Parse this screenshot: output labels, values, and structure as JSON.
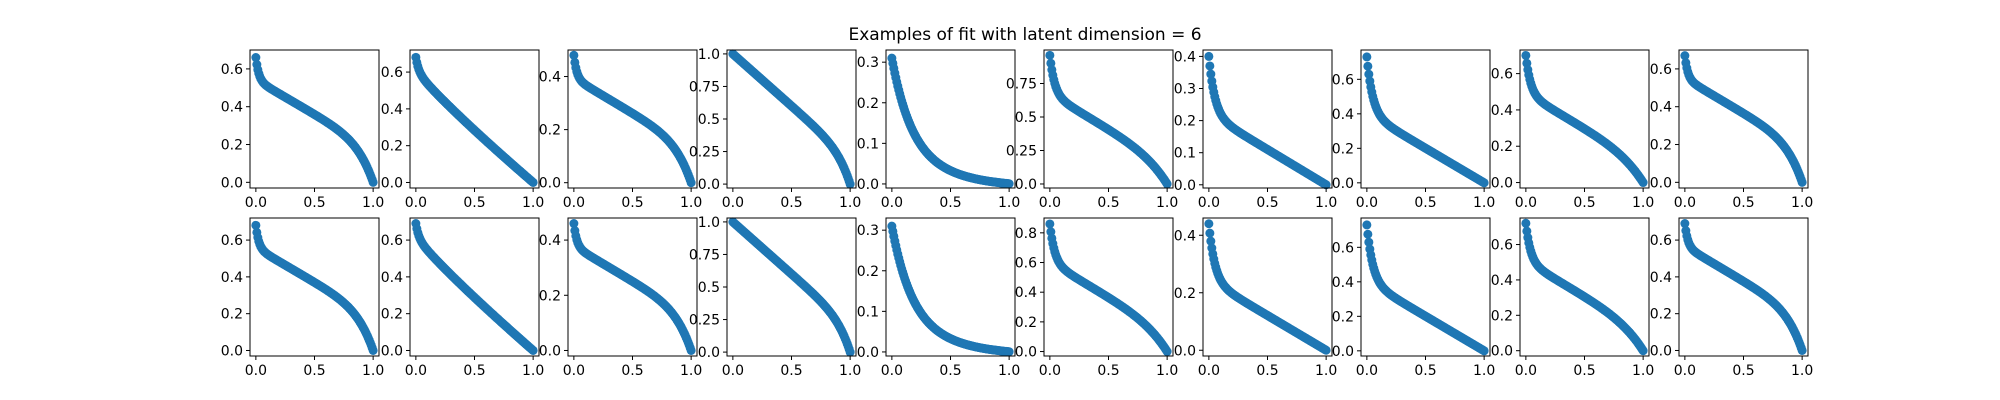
{
  "title": "Examples of fit with latent dimension = 6",
  "chart_data": {
    "type": "scatter",
    "layout": {
      "rows": 2,
      "cols": 10
    },
    "marker_color": "#1f77b4",
    "x_ticks": [
      "0.0",
      "0.5",
      "1.0"
    ],
    "xlim": [
      -0.05,
      1.05
    ],
    "panels": [
      {
        "ytop": 0.66,
        "shape": "convex_mid",
        "yticks": [
          0.0,
          0.2,
          0.4,
          0.6
        ],
        "ylim": [
          -0.03,
          0.7
        ]
      },
      {
        "ytop": 0.68,
        "shape": "concave",
        "yticks": [
          0.0,
          0.2,
          0.4,
          0.6
        ],
        "ylim": [
          -0.03,
          0.72
        ]
      },
      {
        "ytop": 0.48,
        "shape": "convex_mid",
        "yticks": [
          0.0,
          0.2,
          0.4
        ],
        "ylim": [
          -0.02,
          0.5
        ]
      },
      {
        "ytop": 1.0,
        "shape": "linear_drop",
        "yticks": [
          0.0,
          0.25,
          0.5,
          0.75,
          1.0
        ],
        "ylim": [
          -0.03,
          1.03
        ]
      },
      {
        "ytop": 0.31,
        "shape": "decay",
        "yticks": [
          0.0,
          0.1,
          0.2,
          0.3
        ],
        "ylim": [
          -0.01,
          0.33
        ]
      },
      {
        "ytop": 0.96,
        "shape": "steep_mid",
        "yticks": [
          0.0,
          0.25,
          0.5,
          0.75
        ],
        "ylim": [
          -0.03,
          1.0
        ]
      },
      {
        "ytop": 0.4,
        "shape": "decay_mild",
        "yticks": [
          0.0,
          0.1,
          0.2,
          0.3,
          0.4
        ],
        "ylim": [
          -0.01,
          0.42
        ]
      },
      {
        "ytop": 0.73,
        "shape": "decay_mild",
        "yticks": [
          0.0,
          0.2,
          0.4,
          0.6
        ],
        "ylim": [
          -0.03,
          0.77
        ]
      },
      {
        "ytop": 0.7,
        "shape": "steep_mid",
        "yticks": [
          0.0,
          0.2,
          0.4,
          0.6
        ],
        "ylim": [
          -0.03,
          0.73
        ]
      },
      {
        "ytop": 0.67,
        "shape": "convex_mid",
        "yticks": [
          0.0,
          0.2,
          0.4,
          0.6
        ],
        "ylim": [
          -0.03,
          0.7
        ]
      },
      {
        "ytop": 0.68,
        "shape": "convex_mid",
        "yticks": [
          0.0,
          0.2,
          0.4,
          0.6
        ],
        "ylim": [
          -0.03,
          0.72
        ]
      },
      {
        "ytop": 0.69,
        "shape": "concave",
        "yticks": [
          0.0,
          0.2,
          0.4,
          0.6
        ],
        "ylim": [
          -0.03,
          0.72
        ]
      },
      {
        "ytop": 0.46,
        "shape": "convex_mid",
        "yticks": [
          0.0,
          0.2,
          0.4
        ],
        "ylim": [
          -0.02,
          0.48
        ]
      },
      {
        "ytop": 1.0,
        "shape": "linear_drop",
        "yticks": [
          0.0,
          0.25,
          0.5,
          0.75,
          1.0
        ],
        "ylim": [
          -0.03,
          1.03
        ]
      },
      {
        "ytop": 0.31,
        "shape": "decay",
        "yticks": [
          0.0,
          0.1,
          0.2,
          0.3
        ],
        "ylim": [
          -0.01,
          0.33
        ]
      },
      {
        "ytop": 0.86,
        "shape": "steep_mid",
        "yticks": [
          0.0,
          0.2,
          0.4,
          0.6,
          0.8
        ],
        "ylim": [
          -0.03,
          0.9
        ]
      },
      {
        "ytop": 0.44,
        "shape": "decay_mild",
        "yticks": [
          0.0,
          0.2,
          0.4
        ],
        "ylim": [
          -0.02,
          0.46
        ]
      },
      {
        "ytop": 0.73,
        "shape": "decay_mild",
        "yticks": [
          0.0,
          0.2,
          0.4,
          0.6
        ],
        "ylim": [
          -0.03,
          0.77
        ]
      },
      {
        "ytop": 0.72,
        "shape": "steep_mid",
        "yticks": [
          0.0,
          0.2,
          0.4,
          0.6
        ],
        "ylim": [
          -0.03,
          0.75
        ]
      },
      {
        "ytop": 0.69,
        "shape": "convex_mid",
        "yticks": [
          0.0,
          0.2,
          0.4,
          0.6
        ],
        "ylim": [
          -0.03,
          0.72
        ]
      }
    ]
  }
}
